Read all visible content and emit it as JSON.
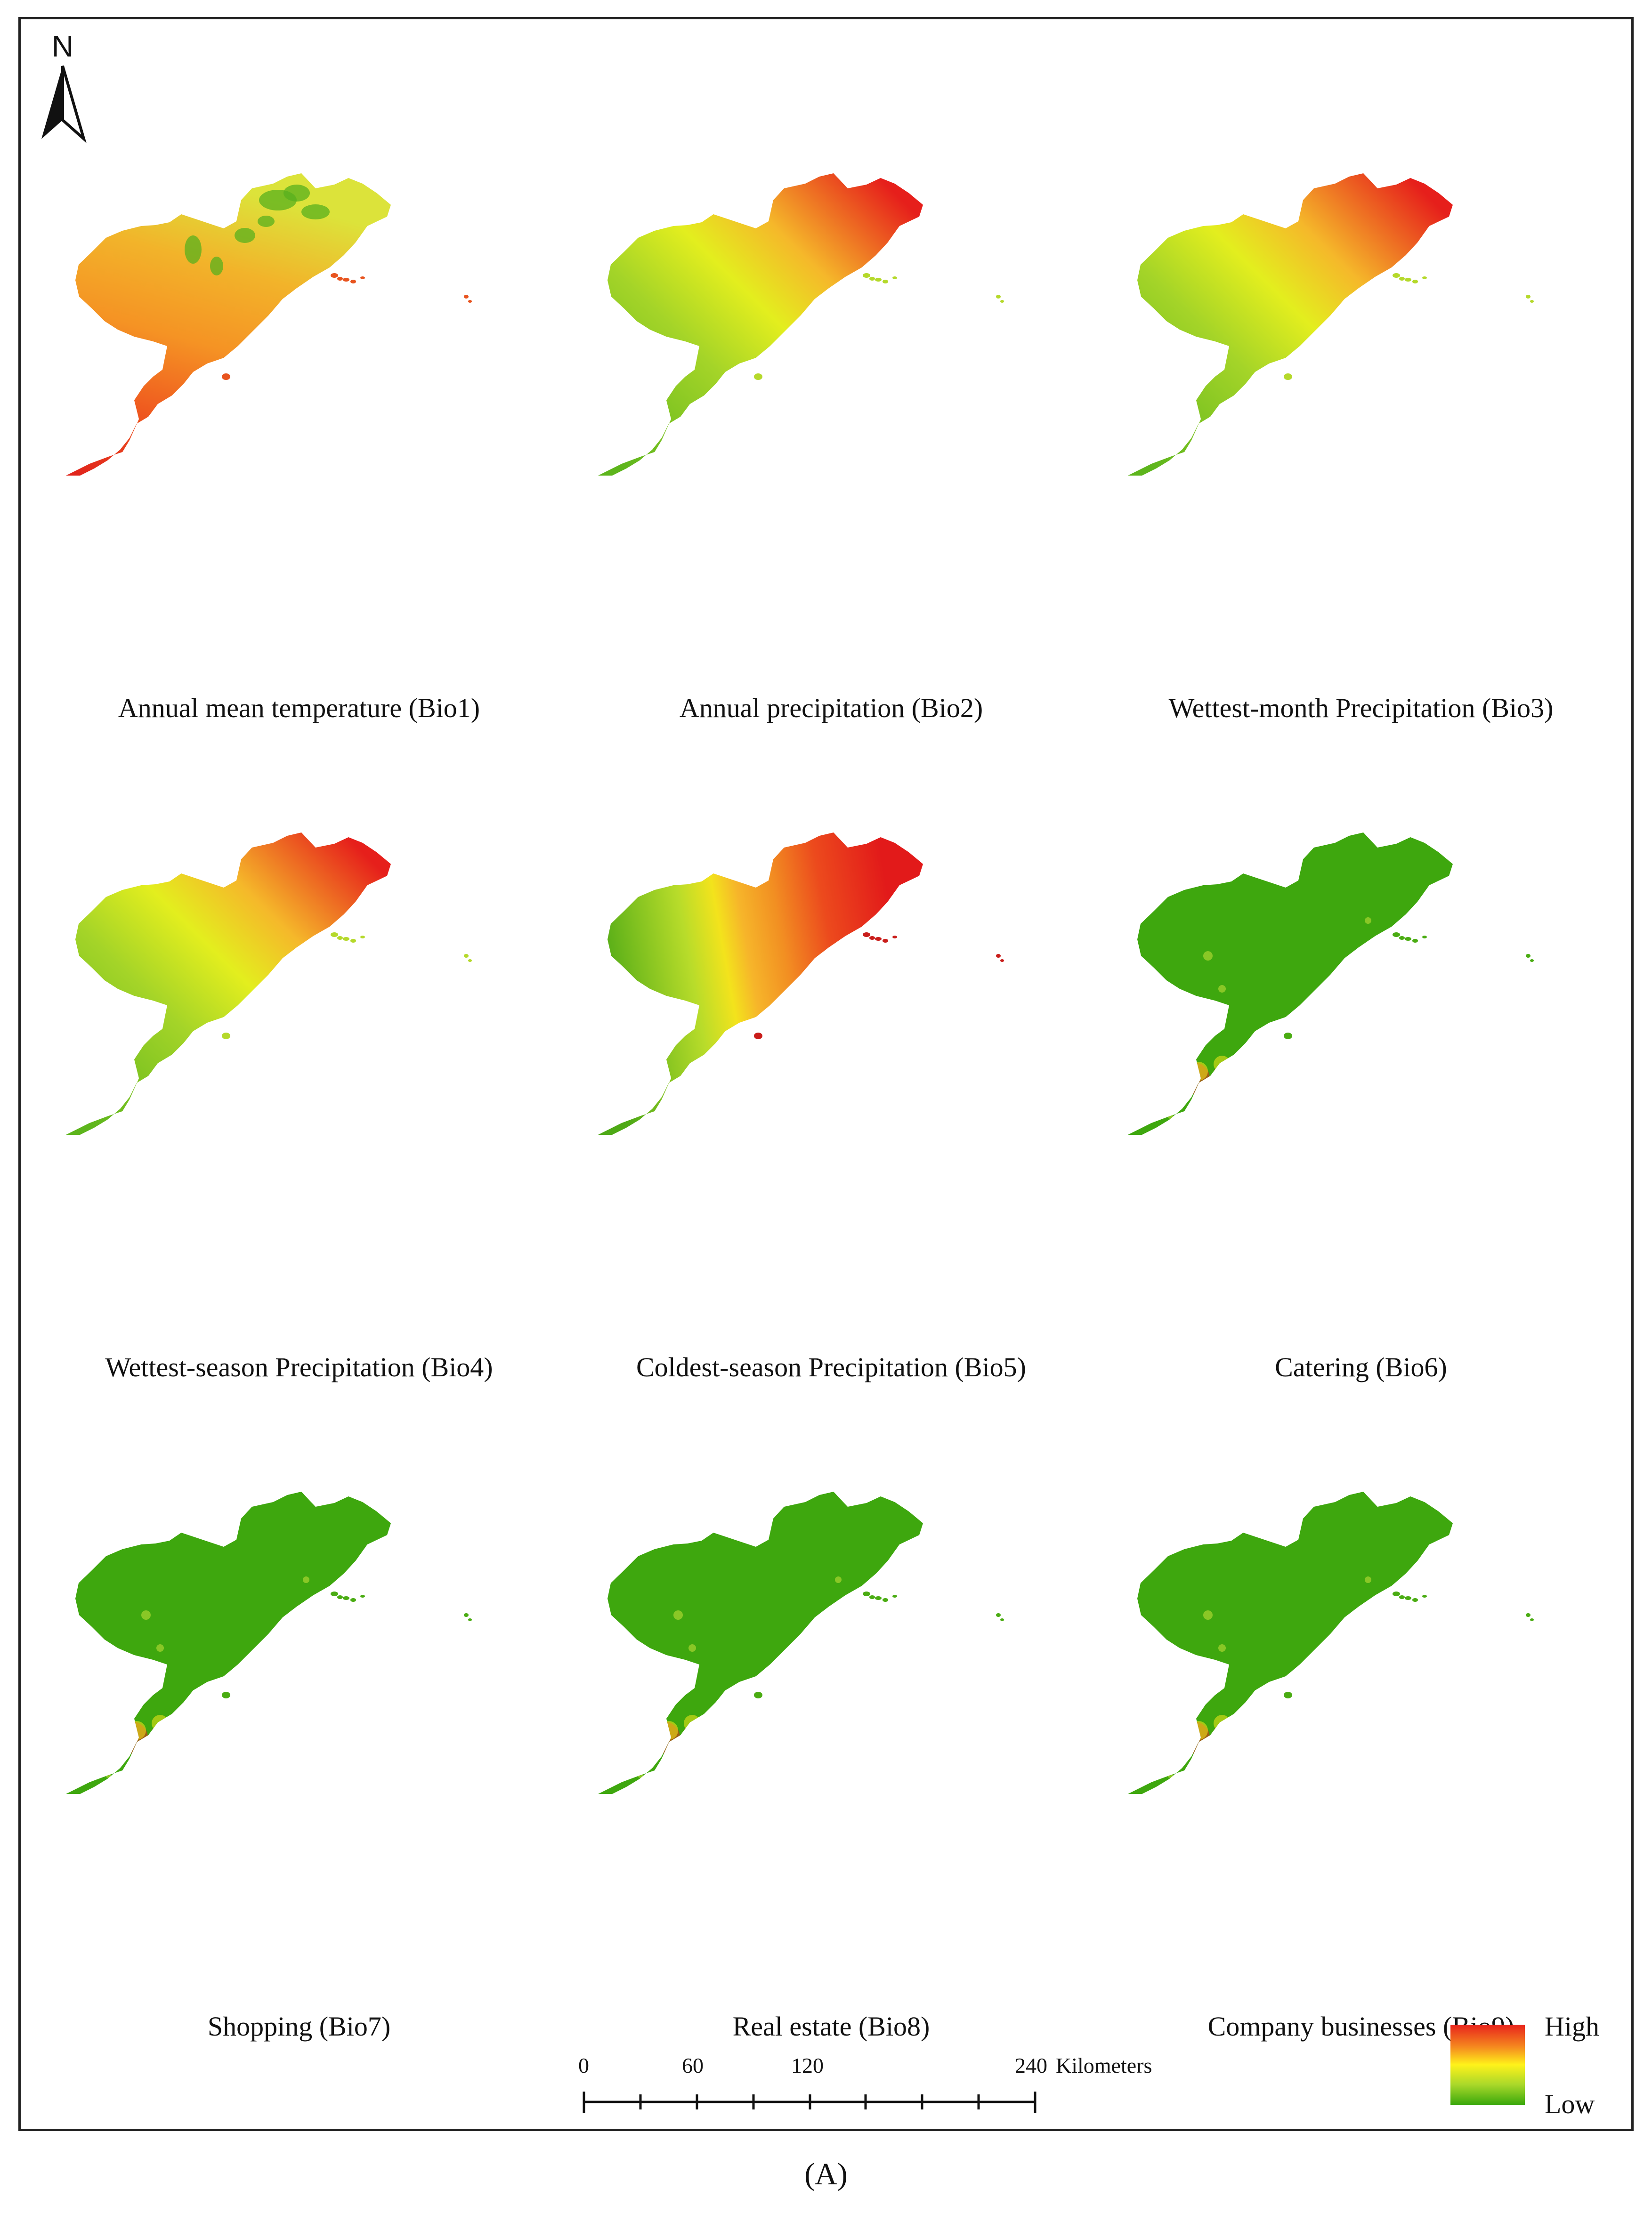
{
  "north_arrow": {
    "letter": "N"
  },
  "panels": [
    {
      "label": "Annual mean temperature (Bio1)",
      "palette": "temp-mottled"
    },
    {
      "label": "Annual precipitation (Bio2)",
      "palette": "precip-ne"
    },
    {
      "label": "Wettest-month Precipitation (Bio3)",
      "palette": "precip-ne"
    },
    {
      "label": "Wettest-season Precipitation (Bio4)",
      "palette": "precip-ne"
    },
    {
      "label": "Coldest-season Precipitation (Bio5)",
      "palette": "banded-ew"
    },
    {
      "label": "Catering (Bio6)",
      "palette": "hotspot"
    },
    {
      "label": "Shopping (Bio7)",
      "palette": "hotspot"
    },
    {
      "label": "Real estate (Bio8)",
      "palette": "hotspot"
    },
    {
      "label": "Company businesses (Bio9)",
      "palette": "hotspot"
    }
  ],
  "scale_bar": {
    "ticks": [
      "0",
      "60",
      "120",
      "240"
    ],
    "unit": "Kilometers"
  },
  "legend": {
    "high": "High",
    "low": "Low",
    "colors": [
      "#e8231c",
      "#f58a1f",
      "#fff21a",
      "#a9d82a",
      "#3aa80c"
    ]
  },
  "caption": "(A)"
}
